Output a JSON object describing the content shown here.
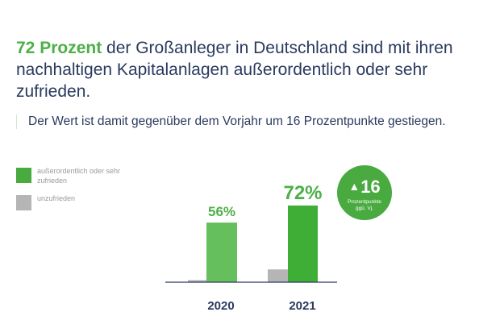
{
  "headline": {
    "highlight": "72 Prozent",
    "rest": " der Großanleger in Deutschland sind mit ihren nachhaltigen Kapitalanlagen außerordentlich oder sehr zufrieden."
  },
  "subline": "Der Wert ist damit gegenüber dem Vorjahr um 16 Prozentpunkte gestiegen.",
  "badge": {
    "arrow_icon": "triangle-up-icon",
    "value": "16",
    "label_line1": "Prozentpunkte",
    "label_line2": "ggü. Vj."
  },
  "colors": {
    "satisfied_2020": "#65bf5c",
    "satisfied_2021": "#3fae36",
    "unsatisfied": "#b5b5b5",
    "axis": "#2a3a5e",
    "title": "#2a3a5e",
    "accent": "#4cb047"
  },
  "chart_data": {
    "type": "bar",
    "categories": [
      "2020",
      "2021"
    ],
    "series": [
      {
        "name": "außerordentlich oder sehr zufrieden",
        "values": [
          56,
          72
        ]
      },
      {
        "name": "unzufrieden",
        "values": [
          2,
          12
        ]
      }
    ],
    "data_labels": [
      "56%",
      "72%"
    ],
    "ylim": [
      0,
      100
    ],
    "grid": false,
    "legend": "left"
  }
}
